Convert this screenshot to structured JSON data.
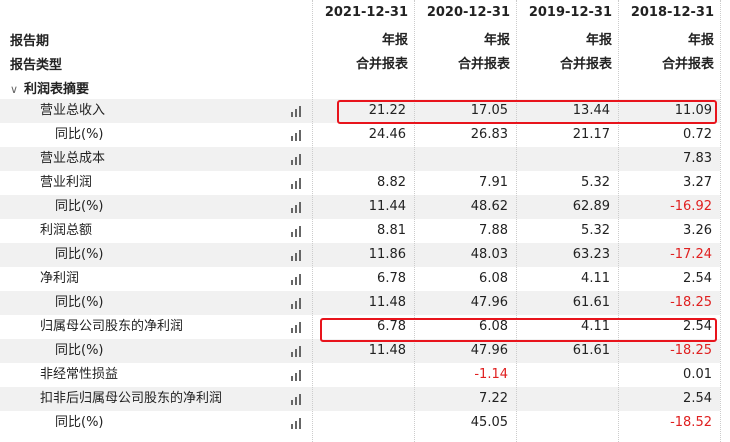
{
  "header": {
    "period_label": "报告期",
    "type_label": "报告类型",
    "columns": [
      {
        "date": "2021-12-31",
        "period": "年报",
        "type": "合并报表"
      },
      {
        "date": "2020-12-31",
        "period": "年报",
        "type": "合并报表"
      },
      {
        "date": "2019-12-31",
        "period": "年报",
        "type": "合并报表"
      },
      {
        "date": "2018-12-31",
        "period": "年报",
        "type": "合并报表"
      }
    ]
  },
  "section": {
    "title": "利润表摘要",
    "icon": "chevron-down-icon"
  },
  "rows": [
    {
      "label": "营业总收入",
      "sub": false,
      "values": [
        "21.22",
        "17.05",
        "13.44",
        "11.09"
      ],
      "highlighted": true
    },
    {
      "label": "同比(%)",
      "sub": true,
      "values": [
        "24.46",
        "26.83",
        "21.17",
        "0.72"
      ]
    },
    {
      "label": "营业总成本",
      "sub": false,
      "values": [
        "",
        "",
        "",
        "7.83"
      ]
    },
    {
      "label": "营业利润",
      "sub": false,
      "values": [
        "8.82",
        "7.91",
        "5.32",
        "3.27"
      ]
    },
    {
      "label": "同比(%)",
      "sub": true,
      "values": [
        "11.44",
        "48.62",
        "62.89",
        "-16.92"
      ]
    },
    {
      "label": "利润总额",
      "sub": false,
      "values": [
        "8.81",
        "7.88",
        "5.32",
        "3.26"
      ]
    },
    {
      "label": "同比(%)",
      "sub": true,
      "values": [
        "11.86",
        "48.03",
        "63.23",
        "-17.24"
      ]
    },
    {
      "label": "净利润",
      "sub": false,
      "values": [
        "6.78",
        "6.08",
        "4.11",
        "2.54"
      ]
    },
    {
      "label": "同比(%)",
      "sub": true,
      "values": [
        "11.48",
        "47.96",
        "61.61",
        "-18.25"
      ]
    },
    {
      "label": "归属母公司股东的净利润",
      "sub": false,
      "values": [
        "6.78",
        "6.08",
        "4.11",
        "2.54"
      ],
      "highlighted": true
    },
    {
      "label": "同比(%)",
      "sub": true,
      "values": [
        "11.48",
        "47.96",
        "61.61",
        "-18.25"
      ]
    },
    {
      "label": "非经常性损益",
      "sub": false,
      "values": [
        "",
        "-1.14",
        "",
        "0.01"
      ]
    },
    {
      "label": "扣非后归属母公司股东的净利润",
      "sub": false,
      "values": [
        "",
        "7.22",
        "",
        "2.54"
      ]
    },
    {
      "label": "同比(%)",
      "sub": true,
      "values": [
        "",
        "45.05",
        "",
        "-18.52"
      ]
    }
  ],
  "colors": {
    "negative": "#e02020",
    "highlight_box": "#e8141c",
    "stripe": "#f1f1f1"
  }
}
